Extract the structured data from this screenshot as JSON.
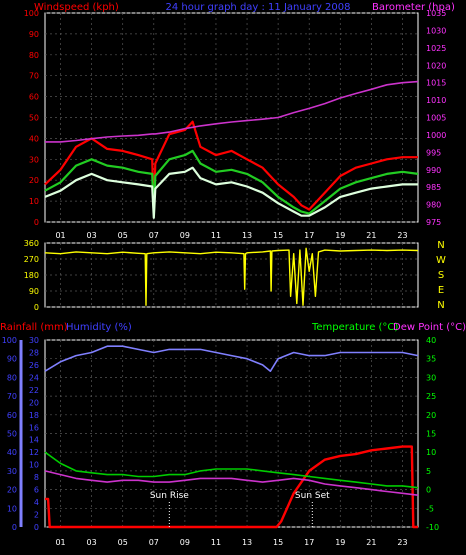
{
  "colors": {
    "background": "#000000",
    "grid": "#555555",
    "axis": "#ffffff",
    "wind_gust": "#ff0000",
    "wind_avg": "#22cc22",
    "wind_speed": "#ddffdd",
    "barometer": "#cc33cc",
    "direction": "#ffff00",
    "rainfall": "#ff0000",
    "humidity": "#8080ff",
    "temperature": "#00cc00",
    "dewpoint": "#cc33cc",
    "sun_marker": "#ffffff",
    "label_red": "#ff0000",
    "label_blue": "#4040ff",
    "label_green": "#00ff00",
    "label_magenta": "#ff33ff",
    "label_yellow": "#ffff00"
  },
  "header": {
    "left": "Windspeed (kph)",
    "center": "24 hour graph day : 11 January 2008",
    "right": "Barometer (hpa)"
  },
  "bottom_labels": {
    "rainfall": "Rainfall (mm)",
    "humidity": "Humidity (%)",
    "temperature": "Temperature (°C)",
    "dewpoint": "Dew Point (°C)"
  },
  "x_ticks": [
    "01",
    "03",
    "05",
    "07",
    "09",
    "11",
    "13",
    "15",
    "17",
    "19",
    "21",
    "23"
  ],
  "compass": [
    "N",
    "W",
    "S",
    "E",
    "N"
  ],
  "sun_events": {
    "rise_label": "Sun Rise",
    "set_label": "Sun Set",
    "rise_hour": 8.0,
    "set_hour": 17.2
  },
  "chart_data": [
    {
      "type": "line",
      "title": "",
      "xlabel": "",
      "ylabel": "Windspeed (kph)",
      "y2label": "Barometer (hpa)",
      "x_hours": [
        0,
        1,
        2,
        3,
        4,
        5,
        6,
        6.9,
        7,
        7.1,
        8,
        9,
        9.5,
        10,
        11,
        12,
        13,
        14,
        15,
        16,
        16.5,
        17,
        18,
        19,
        20,
        21,
        22,
        23,
        24
      ],
      "ylim": [
        0,
        100
      ],
      "y_ticks": [
        0,
        10,
        20,
        30,
        40,
        50,
        60,
        70,
        80,
        90,
        100
      ],
      "y2lim": [
        975,
        1035
      ],
      "y2_ticks": [
        975,
        980,
        985,
        990,
        995,
        1000,
        1005,
        1010,
        1015,
        1020,
        1025,
        1030,
        1035
      ],
      "series": [
        {
          "key": "gust",
          "axis": "left",
          "values": [
            18,
            25,
            36,
            40,
            35,
            34,
            32,
            30,
            5,
            28,
            42,
            44,
            48,
            36,
            32,
            34,
            30,
            26,
            18,
            12,
            8,
            6,
            14,
            22,
            26,
            28,
            30,
            31,
            31
          ]
        },
        {
          "key": "average",
          "axis": "left",
          "values": [
            15,
            19,
            27,
            30,
            27,
            26,
            24,
            23,
            4,
            22,
            30,
            32,
            34,
            28,
            24,
            25,
            23,
            19,
            12,
            7,
            5,
            4,
            10,
            16,
            19,
            21,
            23,
            24,
            23
          ]
        },
        {
          "key": "speed",
          "axis": "left",
          "values": [
            12,
            15,
            20,
            23,
            20,
            19,
            18,
            17,
            2,
            16,
            23,
            24,
            26,
            21,
            18,
            19,
            17,
            14,
            9,
            5,
            3,
            3,
            7,
            12,
            14,
            16,
            17,
            18,
            18
          ]
        },
        {
          "key": "barometer",
          "axis": "right",
          "values": [
            998.0,
            998.0,
            998.4,
            998.9,
            999.4,
            999.7,
            999.9,
            1000.3,
            1000.3,
            1000.3,
            1000.8,
            1001.8,
            1002.2,
            1002.6,
            1003.2,
            1003.7,
            1004.1,
            1004.5,
            1005.0,
            1006.4,
            1007.0,
            1007.6,
            1009.0,
            1010.6,
            1011.9,
            1013.1,
            1014.4,
            1015.0,
            1015.3
          ]
        }
      ]
    },
    {
      "type": "line",
      "title": "",
      "xlabel": "",
      "ylabel": "",
      "ylim": [
        0,
        360
      ],
      "y_ticks": [
        0,
        90,
        180,
        270,
        360
      ],
      "series": [
        {
          "key": "direction",
          "x_hours": [
            0,
            1,
            2,
            3,
            4,
            5,
            6,
            6.45,
            6.5,
            6.55,
            7,
            8,
            9,
            10,
            11,
            12,
            12.8,
            12.85,
            12.9,
            13,
            14,
            14.5,
            14.55,
            14.6,
            15,
            15.7,
            15.8,
            16,
            16.2,
            16.4,
            16.6,
            16.8,
            17,
            17.2,
            17.4,
            17.6,
            18,
            19,
            20,
            21,
            22,
            23,
            24
          ],
          "values": [
            305,
            300,
            310,
            305,
            300,
            308,
            302,
            300,
            10,
            300,
            305,
            310,
            305,
            300,
            308,
            305,
            300,
            100,
            300,
            305,
            310,
            315,
            90,
            315,
            318,
            320,
            60,
            300,
            20,
            320,
            10,
            330,
            200,
            300,
            60,
            310,
            320,
            315,
            318,
            320,
            318,
            320,
            318
          ]
        }
      ]
    },
    {
      "type": "line",
      "title": "",
      "xlabel": "",
      "ylabel": "Rainfall (mm)",
      "y2label": "Temperature (°C)",
      "ylim": [
        0,
        100
      ],
      "y_ticks": [
        0,
        10,
        20,
        30,
        40,
        50,
        60,
        70,
        80,
        90,
        100
      ],
      "humidity_lim": [
        0,
        30
      ],
      "humidity_ticks": [
        0,
        2,
        4,
        6,
        8,
        10,
        12,
        14,
        16,
        18,
        20,
        22,
        24,
        26,
        28,
        30
      ],
      "y2lim": [
        -10,
        40
      ],
      "y2_ticks": [
        -10,
        -5,
        0,
        5,
        10,
        15,
        20,
        25,
        30,
        35,
        40
      ],
      "series": [
        {
          "key": "rainfall",
          "axis": "rain",
          "x_hours": [
            0,
            0.2,
            0.3,
            14.9,
            15.2,
            16,
            17,
            18,
            19,
            20,
            21,
            22,
            23,
            23.6,
            23.7,
            24
          ],
          "values": [
            15,
            15,
            0,
            0,
            3,
            18,
            30,
            36,
            38,
            39,
            41,
            42,
            43,
            43,
            0,
            0
          ]
        },
        {
          "key": "humidity",
          "axis": "humidity",
          "x_hours": [
            0,
            1,
            2,
            3,
            4,
            5,
            6,
            7,
            8,
            9,
            10,
            11,
            12,
            13,
            14,
            14.5,
            15,
            16,
            17,
            18,
            19,
            20,
            21,
            22,
            23,
            24
          ],
          "values": [
            25,
            26.5,
            27.5,
            28,
            29,
            29,
            28.5,
            28,
            28.5,
            28.5,
            28.5,
            28,
            27.5,
            27,
            26,
            25,
            27,
            28,
            27.5,
            27.5,
            28,
            28,
            28,
            28,
            28,
            27.5
          ]
        },
        {
          "key": "temperature",
          "axis": "right",
          "x_hours": [
            0,
            1,
            2,
            3,
            4,
            5,
            6,
            7,
            8,
            9,
            10,
            11,
            12,
            13,
            14,
            15,
            16,
            17,
            18,
            19,
            20,
            21,
            22,
            23,
            24
          ],
          "values": [
            10,
            7,
            5,
            4.5,
            4,
            4,
            3.5,
            3.5,
            4,
            4,
            5,
            5.5,
            5.5,
            5.5,
            5,
            4.5,
            4,
            3.5,
            3,
            2.5,
            2,
            1.5,
            1,
            1,
            0.5
          ]
        },
        {
          "key": "dewpoint",
          "axis": "right",
          "x_hours": [
            0,
            1,
            2,
            3,
            4,
            5,
            6,
            7,
            8,
            9,
            10,
            11,
            12,
            13,
            14,
            15,
            16,
            17,
            18,
            19,
            20,
            21,
            22,
            23,
            24
          ],
          "values": [
            5,
            4,
            3,
            2.5,
            2,
            2.5,
            2.5,
            2,
            2,
            2.5,
            3,
            3,
            3,
            2.5,
            2,
            2.5,
            3,
            2.5,
            1.5,
            1,
            0.5,
            0,
            -0.5,
            -1,
            -1.5
          ]
        }
      ]
    }
  ]
}
